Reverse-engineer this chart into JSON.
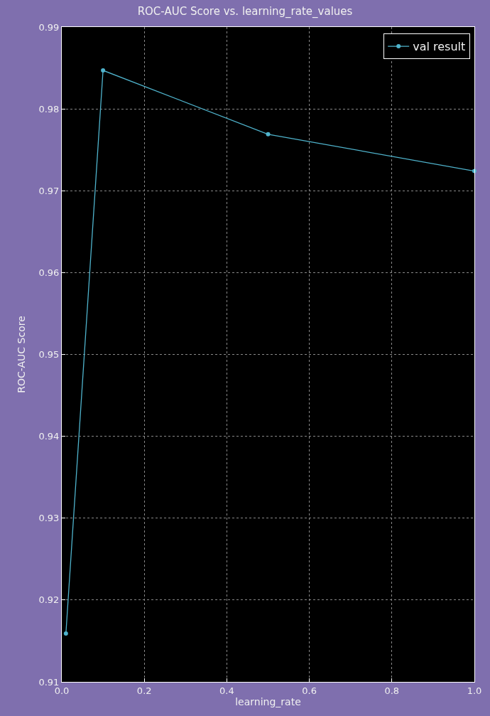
{
  "chart_data": {
    "type": "line",
    "title": "ROC-AUC Score vs. learning_rate_values",
    "xlabel": "learning_rate",
    "ylabel": "ROC-AUC Score",
    "x": [
      0.01,
      0.1,
      0.5,
      1.0
    ],
    "series": [
      {
        "name": "val result",
        "color": "#4fb3cc",
        "values": [
          0.9159,
          0.9847,
          0.9769,
          0.9724
        ]
      }
    ],
    "xlim": [
      0.0,
      1.0
    ],
    "xticks": [
      {
        "value": 0,
        "label": "0.0"
      },
      0.2,
      0.4,
      0.6,
      0.8,
      {
        "value": 1,
        "label": "1.0"
      }
    ],
    "ylim": [
      0.91,
      0.99
    ],
    "yticks": [
      0.91,
      0.92,
      0.93,
      0.94,
      0.95,
      0.96,
      0.97,
      0.98,
      0.99
    ],
    "grid": true,
    "legend": "top right",
    "marker": "circle",
    "line_style": "solid"
  }
}
